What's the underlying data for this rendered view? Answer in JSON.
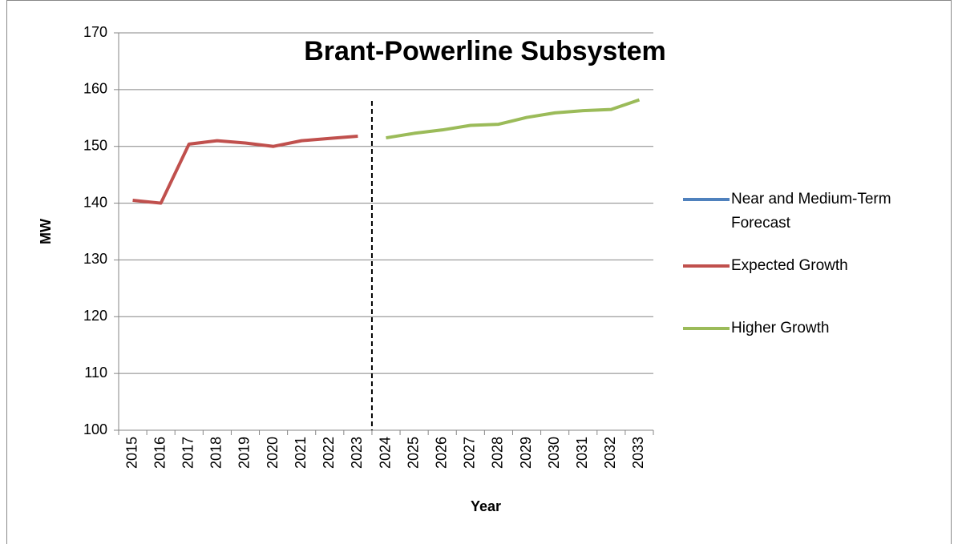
{
  "chart_data": {
    "type": "line",
    "title": "Brant-Powerline Subsystem",
    "x_label": "Year",
    "y_label": "MW",
    "categories": [
      "2015",
      "2016",
      "2017",
      "2018",
      "2019",
      "2020",
      "2021",
      "2022",
      "2023",
      "2024",
      "2025",
      "2026",
      "2027",
      "2028",
      "2029",
      "2030",
      "2031",
      "2032",
      "2033"
    ],
    "series": [
      {
        "name": "Near and Medium-Term Forecast",
        "color": "#4f81bd",
        "values": [
          null,
          null,
          null,
          null,
          null,
          null,
          null,
          null,
          null,
          null,
          null,
          null,
          null,
          null,
          null,
          null,
          null,
          null,
          null
        ]
      },
      {
        "name": "Expected Growth",
        "color": "#c0504d",
        "values": [
          140.5,
          140,
          150.4,
          151,
          150.6,
          150,
          151,
          151.4,
          151.8,
          null,
          null,
          null,
          null,
          null,
          null,
          null,
          null,
          null,
          null
        ]
      },
      {
        "name": "Higher Growth",
        "color": "#9bbb59",
        "values": [
          null,
          null,
          null,
          null,
          null,
          null,
          null,
          null,
          null,
          151.5,
          152.3,
          152.9,
          153.7,
          153.9,
          155.1,
          155.9,
          156.3,
          156.5,
          158.2
        ]
      }
    ],
    "ylim": [
      100,
      170
    ],
    "yticks": [
      100,
      110,
      120,
      130,
      140,
      150,
      160,
      170
    ],
    "grid": true,
    "legend": "right"
  }
}
